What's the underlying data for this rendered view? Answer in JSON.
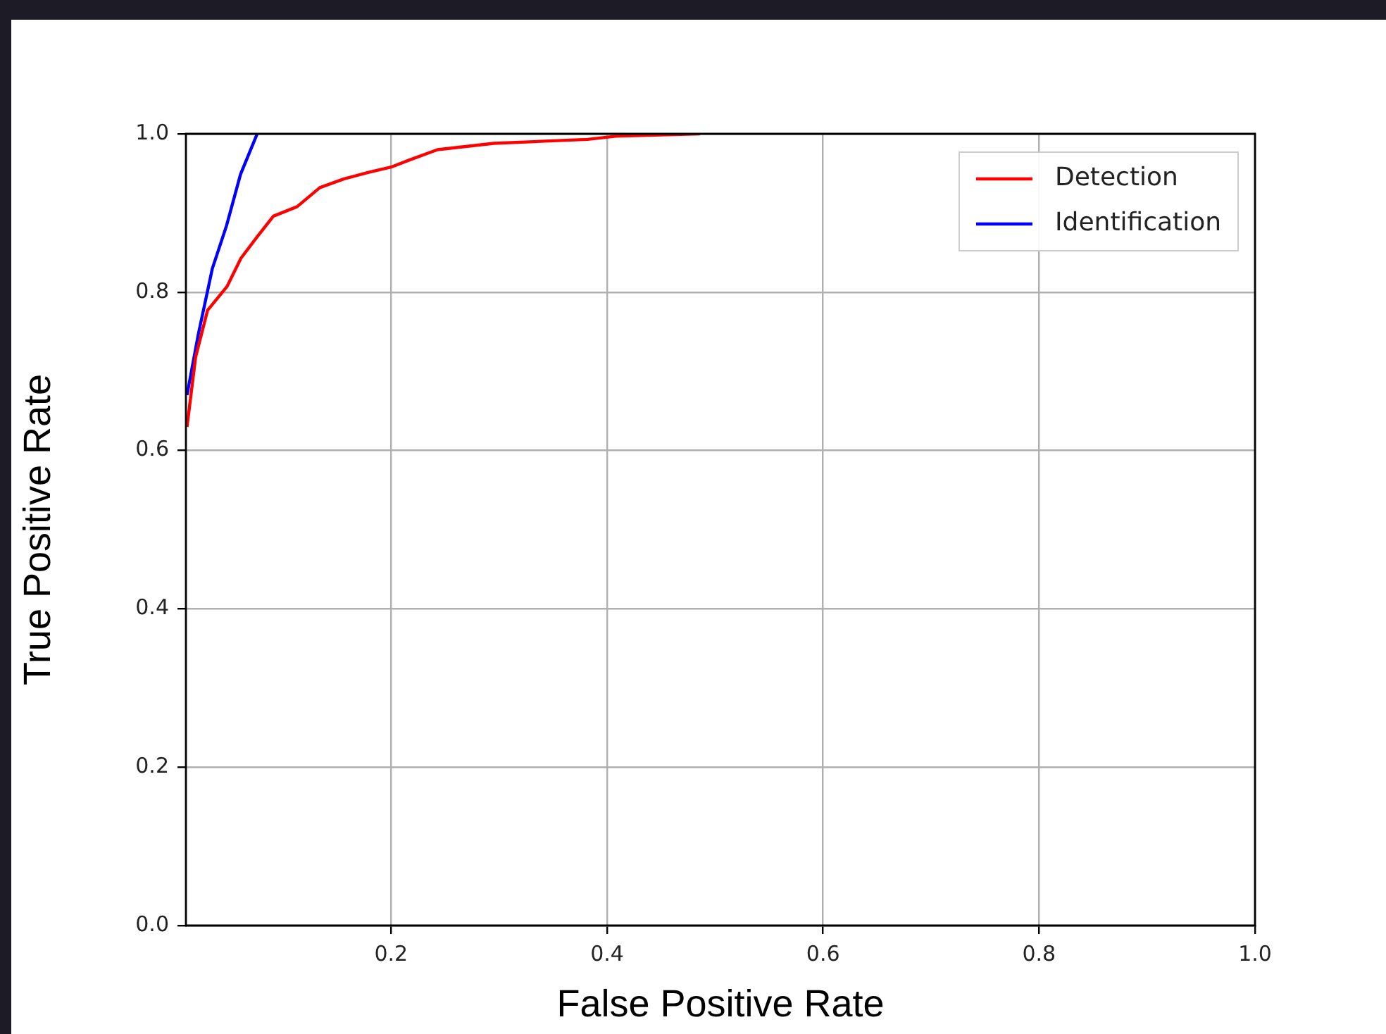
{
  "chart_data": {
    "type": "line",
    "xlabel": "False Positive Rate",
    "ylabel": "True Positive Rate",
    "xlim": [
      0.01,
      1.0
    ],
    "ylim": [
      0,
      1.0
    ],
    "xticks": [
      {
        "value": 0.2,
        "label": "0.2"
      },
      {
        "value": 0.4,
        "label": "0.4"
      },
      {
        "value": 0.6,
        "label": "0.6"
      },
      {
        "value": 0.8,
        "label": "0.8"
      },
      {
        "value": 1.0,
        "label": "1.0"
      }
    ],
    "yticks": [
      {
        "value": 0,
        "label": "0.0"
      },
      {
        "value": 0.2,
        "label": "0.2"
      },
      {
        "value": 0.4,
        "label": "0.4"
      },
      {
        "value": 0.6,
        "label": "0.6"
      },
      {
        "value": 0.8,
        "label": "0.8"
      },
      {
        "value": 1.0,
        "label": "1.0"
      }
    ],
    "grid": true,
    "legend": "top right",
    "marker": "none",
    "line_style": "solid",
    "series": [
      {
        "name": "Detection",
        "color": "#ff0000",
        "x": [
          0.011,
          0.019,
          0.03,
          0.048,
          0.061,
          0.076,
          0.091,
          0.113,
          0.134,
          0.156,
          0.178,
          0.2,
          0.217,
          0.243,
          0.295,
          0.382,
          0.408,
          0.486
        ],
        "values": [
          0.63,
          0.718,
          0.777,
          0.807,
          0.843,
          0.87,
          0.896,
          0.908,
          0.932,
          0.943,
          0.951,
          0.958,
          0.967,
          0.98,
          0.988,
          0.993,
          0.997,
          1.0
        ]
      },
      {
        "name": "Identification",
        "color": "#0000ff",
        "x": [
          0.011,
          0.0215,
          0.0345,
          0.0476,
          0.0606,
          0.076
        ],
        "values": [
          0.67,
          0.747,
          0.83,
          0.884,
          0.949,
          1.0
        ]
      }
    ]
  }
}
